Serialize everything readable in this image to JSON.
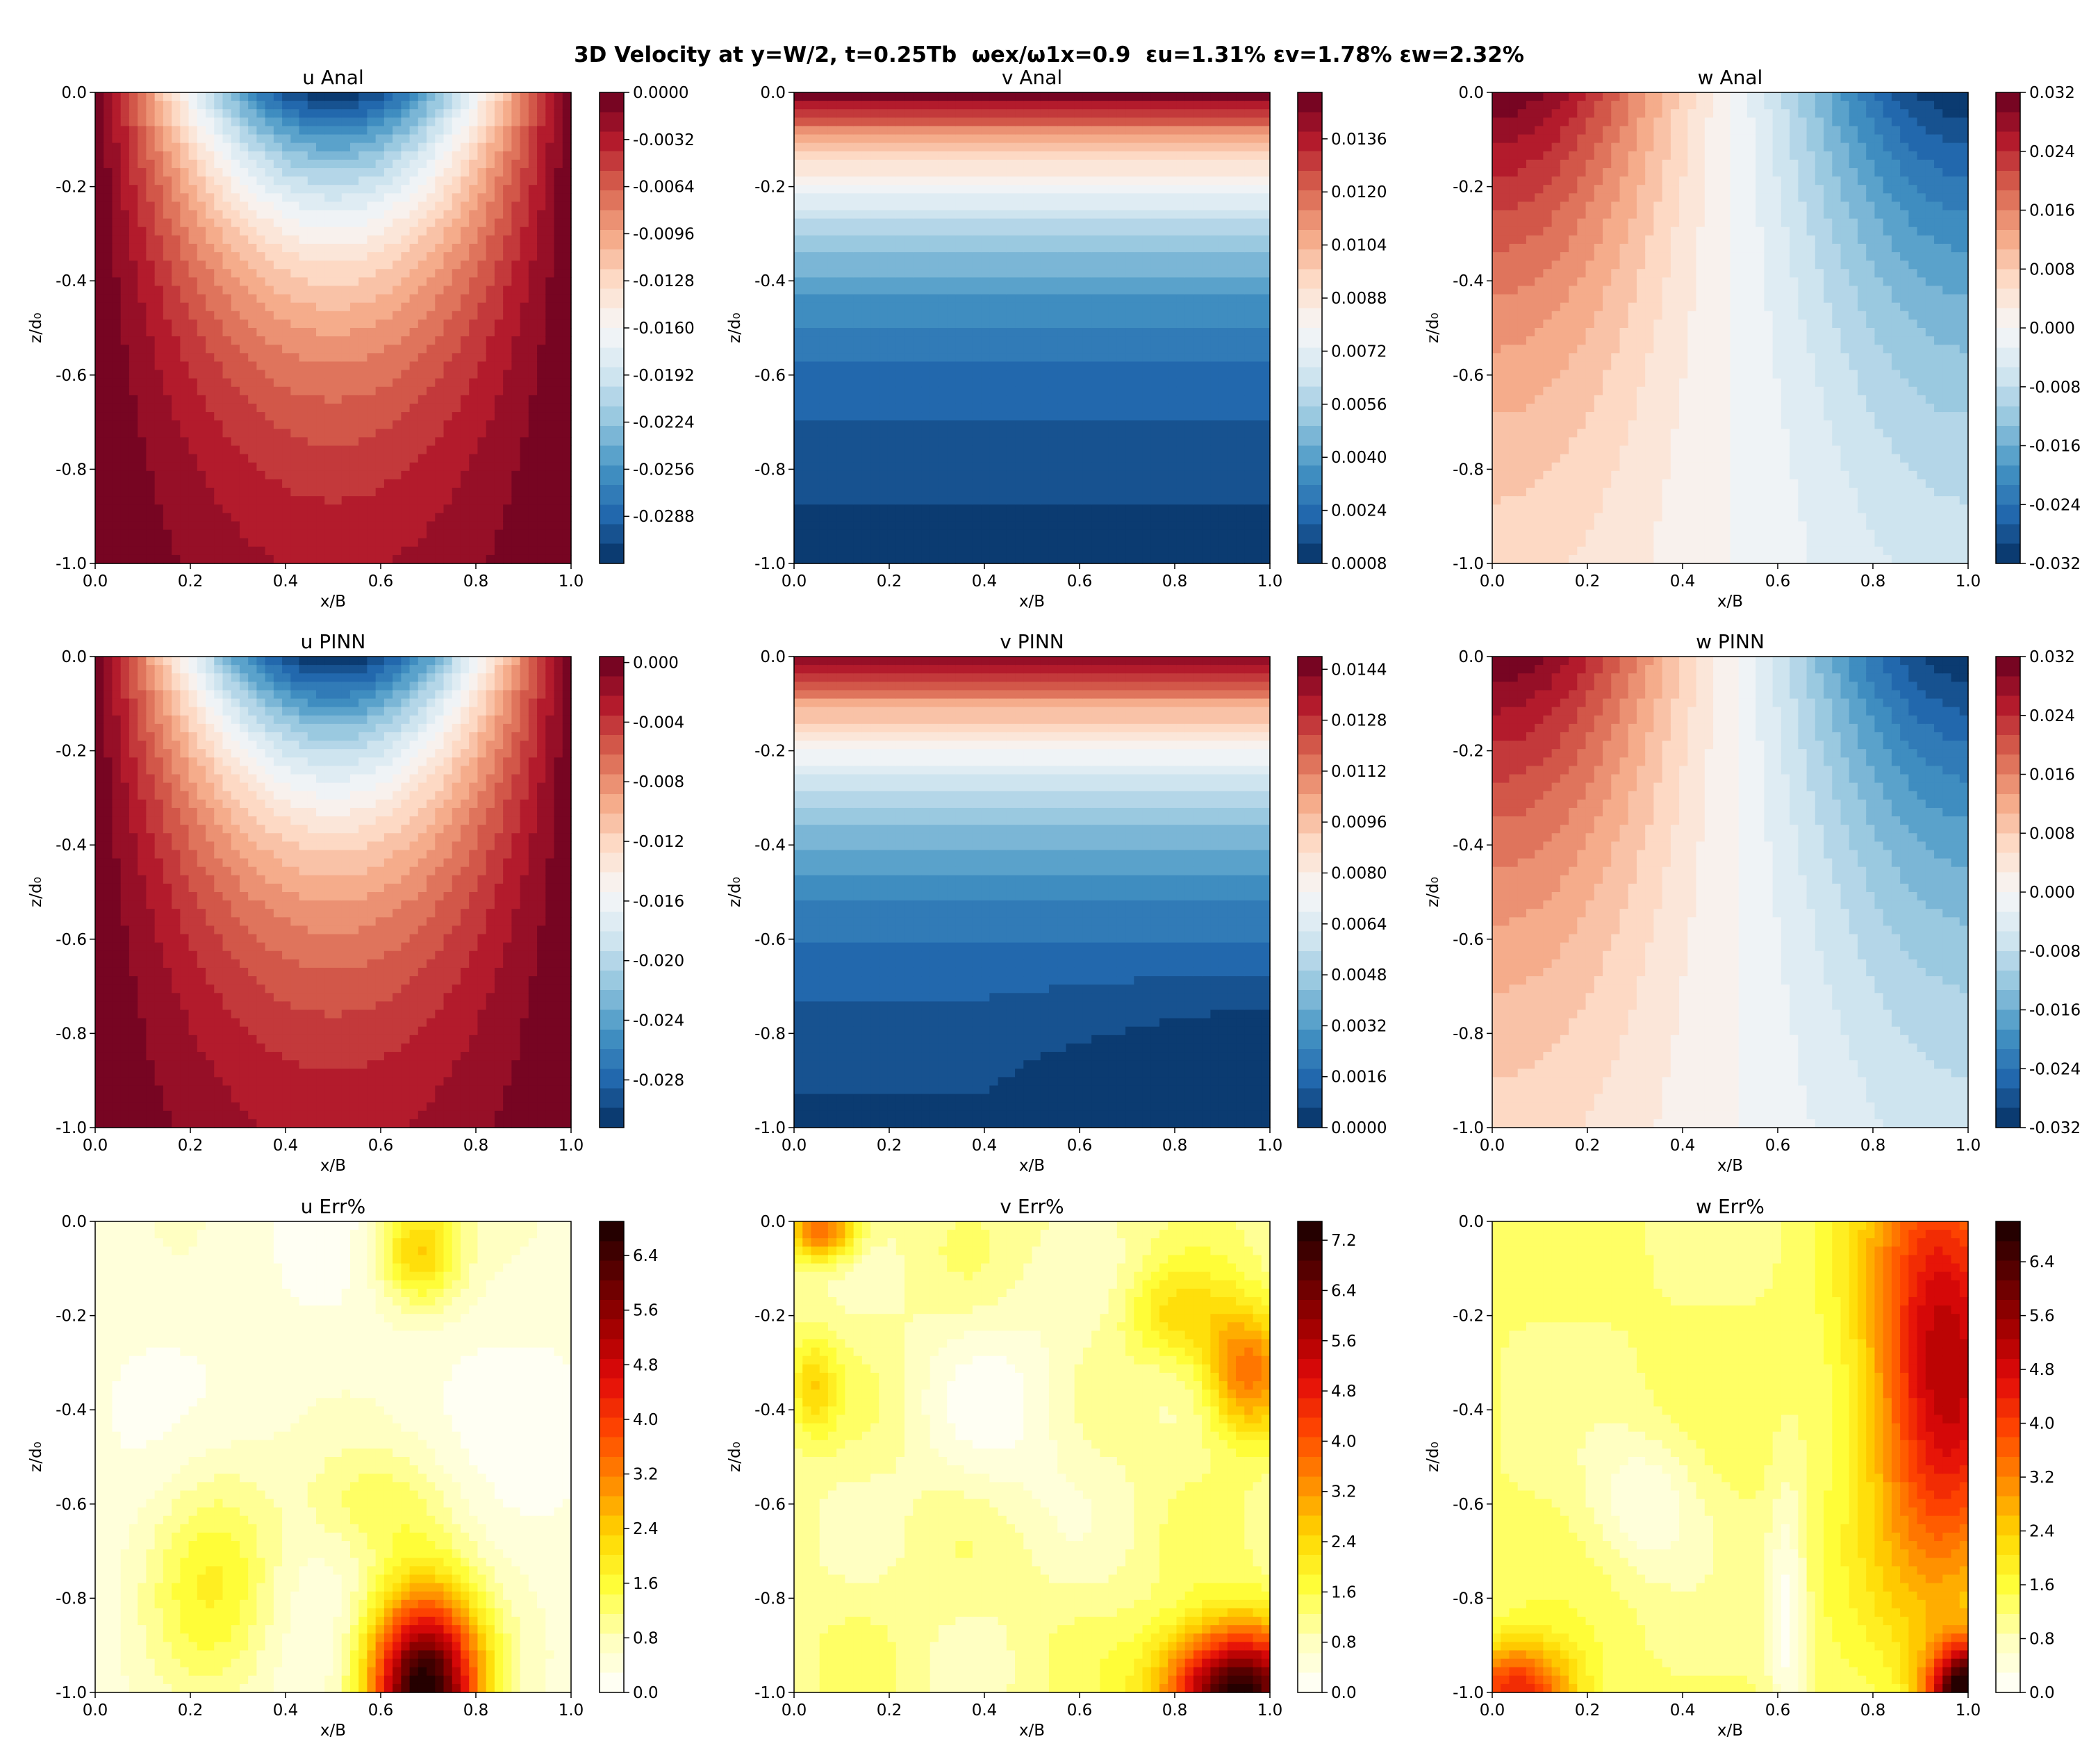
{
  "figure": {
    "title": "3D Velocity at y=W/2, t=0.25Tb  ωex/ω1x=0.9  εu=1.31% εv=1.78% εw=2.32%"
  },
  "chart_data": [
    {
      "type": "heatmap",
      "title": "u Anal",
      "xlabel": "x/B",
      "ylabel": "z/d₀",
      "xlim": [
        0.0,
        1.0
      ],
      "ylim": [
        -1.0,
        0.0
      ],
      "cmap": "RdBu_r",
      "x_ticks": [
        "0.0",
        "0.2",
        "0.4",
        "0.6",
        "0.8",
        "1.0"
      ],
      "y_ticks": [
        "0.0",
        "-0.2",
        "-0.4",
        "-0.6",
        "-0.8",
        "-1.0"
      ],
      "field": "u_anal",
      "vmin": -0.032,
      "vmax": 0.0,
      "colorbar_ticks": [
        "0.0000",
        "-0.0032",
        "-0.0064",
        "-0.0096",
        "-0.0128",
        "-0.0160",
        "-0.0192",
        "-0.0224",
        "-0.0256",
        "-0.0288"
      ]
    },
    {
      "type": "heatmap",
      "title": "v Anal",
      "xlabel": "x/B",
      "ylabel": "z/d₀",
      "xlim": [
        0.0,
        1.0
      ],
      "ylim": [
        -1.0,
        0.0
      ],
      "cmap": "RdBu_r",
      "x_ticks": [
        "0.0",
        "0.2",
        "0.4",
        "0.6",
        "0.8",
        "1.0"
      ],
      "y_ticks": [
        "0.0",
        "-0.2",
        "-0.4",
        "-0.6",
        "-0.8",
        "-1.0"
      ],
      "field": "v_anal",
      "vmin": 0.0008,
      "vmax": 0.015,
      "colorbar_ticks": [
        "0.0136",
        "0.0120",
        "0.0104",
        "0.0088",
        "0.0072",
        "0.0056",
        "0.0040",
        "0.0024",
        "0.0008"
      ]
    },
    {
      "type": "heatmap",
      "title": "w Anal",
      "xlabel": "x/B",
      "ylabel": "z/d₀",
      "xlim": [
        0.0,
        1.0
      ],
      "ylim": [
        -1.0,
        0.0
      ],
      "cmap": "RdBu_r",
      "x_ticks": [
        "0.0",
        "0.2",
        "0.4",
        "0.6",
        "0.8",
        "1.0"
      ],
      "y_ticks": [
        "0.0",
        "-0.2",
        "-0.4",
        "-0.6",
        "-0.8",
        "-1.0"
      ],
      "field": "w_anal",
      "vmin": -0.032,
      "vmax": 0.032,
      "colorbar_ticks": [
        "0.032",
        "0.024",
        "0.016",
        "0.008",
        "0.000",
        "-0.008",
        "-0.016",
        "-0.024",
        "-0.032"
      ]
    },
    {
      "type": "heatmap",
      "title": "u PINN",
      "xlabel": "x/B",
      "ylabel": "z/d₀",
      "xlim": [
        0.0,
        1.0
      ],
      "ylim": [
        -1.0,
        0.0
      ],
      "cmap": "RdBu_r",
      "x_ticks": [
        "0.0",
        "0.2",
        "0.4",
        "0.6",
        "0.8",
        "1.0"
      ],
      "y_ticks": [
        "0.0",
        "-0.2",
        "-0.4",
        "-0.6",
        "-0.8",
        "-1.0"
      ],
      "field": "u_pinn",
      "vmin": -0.0312,
      "vmax": 0.0004,
      "colorbar_ticks": [
        "0.000",
        "-0.004",
        "-0.008",
        "-0.012",
        "-0.016",
        "-0.020",
        "-0.024",
        "-0.028"
      ]
    },
    {
      "type": "heatmap",
      "title": "v PINN",
      "xlabel": "x/B",
      "ylabel": "z/d₀",
      "xlim": [
        0.0,
        1.0
      ],
      "ylim": [
        -1.0,
        0.0
      ],
      "cmap": "RdBu_r",
      "x_ticks": [
        "0.0",
        "0.2",
        "0.4",
        "0.6",
        "0.8",
        "1.0"
      ],
      "y_ticks": [
        "0.0",
        "-0.2",
        "-0.4",
        "-0.6",
        "-0.8",
        "-1.0"
      ],
      "field": "v_pinn",
      "vmin": 0.0,
      "vmax": 0.0148,
      "colorbar_ticks": [
        "0.0144",
        "0.0128",
        "0.0112",
        "0.0096",
        "0.0080",
        "0.0064",
        "0.0048",
        "0.0032",
        "0.0016",
        "0.0000"
      ]
    },
    {
      "type": "heatmap",
      "title": "w PINN",
      "xlabel": "x/B",
      "ylabel": "z/d₀",
      "xlim": [
        0.0,
        1.0
      ],
      "ylim": [
        -1.0,
        0.0
      ],
      "cmap": "RdBu_r",
      "x_ticks": [
        "0.0",
        "0.2",
        "0.4",
        "0.6",
        "0.8",
        "1.0"
      ],
      "y_ticks": [
        "0.0",
        "-0.2",
        "-0.4",
        "-0.6",
        "-0.8",
        "-1.0"
      ],
      "field": "w_pinn",
      "vmin": -0.032,
      "vmax": 0.032,
      "colorbar_ticks": [
        "0.032",
        "0.024",
        "0.016",
        "0.008",
        "0.000",
        "-0.008",
        "-0.016",
        "-0.024",
        "-0.032"
      ]
    },
    {
      "type": "heatmap",
      "title": "u Err%",
      "xlabel": "x/B",
      "ylabel": "z/d₀",
      "xlim": [
        0.0,
        1.0
      ],
      "ylim": [
        -1.0,
        0.0
      ],
      "cmap": "hot_r",
      "x_ticks": [
        "0.0",
        "0.2",
        "0.4",
        "0.6",
        "0.8",
        "1.0"
      ],
      "y_ticks": [
        "0.0",
        "-0.2",
        "-0.4",
        "-0.6",
        "-0.8",
        "-1.0"
      ],
      "field": "u_err",
      "vmin": 0.0,
      "vmax": 6.9,
      "colorbar_ticks": [
        "6.4",
        "5.6",
        "4.8",
        "4.0",
        "3.2",
        "2.4",
        "1.6",
        "0.8",
        "0.0"
      ]
    },
    {
      "type": "heatmap",
      "title": "v Err%",
      "xlabel": "x/B",
      "ylabel": "z/d₀",
      "xlim": [
        0.0,
        1.0
      ],
      "ylim": [
        -1.0,
        0.0
      ],
      "cmap": "hot_r",
      "x_ticks": [
        "0.0",
        "0.2",
        "0.4",
        "0.6",
        "0.8",
        "1.0"
      ],
      "y_ticks": [
        "0.0",
        "-0.2",
        "-0.4",
        "-0.6",
        "-0.8",
        "-1.0"
      ],
      "field": "v_err",
      "vmin": 0.0,
      "vmax": 7.5,
      "colorbar_ticks": [
        "7.2",
        "6.4",
        "5.6",
        "4.8",
        "4.0",
        "3.2",
        "2.4",
        "1.6",
        "0.8",
        "0.0"
      ]
    },
    {
      "type": "heatmap",
      "title": "w Err%",
      "xlabel": "x/B",
      "ylabel": "z/d₀",
      "xlim": [
        0.0,
        1.0
      ],
      "ylim": [
        -1.0,
        0.0
      ],
      "cmap": "hot_r",
      "x_ticks": [
        "0.0",
        "0.2",
        "0.4",
        "0.6",
        "0.8",
        "1.0"
      ],
      "y_ticks": [
        "0.0",
        "-0.2",
        "-0.4",
        "-0.6",
        "-0.8",
        "-1.0"
      ],
      "field": "w_err",
      "vmin": 0.0,
      "vmax": 7.0,
      "colorbar_ticks": [
        "6.4",
        "5.6",
        "4.8",
        "4.0",
        "3.2",
        "2.4",
        "1.6",
        "0.8",
        "0.0"
      ]
    }
  ]
}
